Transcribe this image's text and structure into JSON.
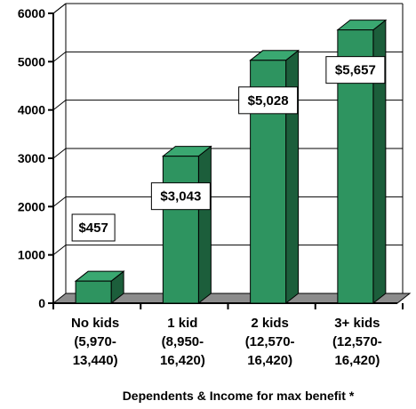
{
  "chart_data": {
    "type": "bar",
    "style": "3d",
    "categories": [
      [
        "No kids",
        "(5,970-",
        "13,440)"
      ],
      [
        "1 kid",
        "(8,950-",
        "16,420)"
      ],
      [
        "2 kids",
        "(12,570-",
        "16,420)"
      ],
      [
        "3+ kids",
        "(12,570-",
        "16,420)"
      ]
    ],
    "values": [
      457,
      3043,
      5028,
      5657
    ],
    "data_labels": [
      "$457",
      "$3,043",
      "$5,028",
      "$5,657"
    ],
    "y_ticks": [
      "0",
      "1000",
      "2000",
      "3000",
      "4000",
      "5000",
      "6000"
    ],
    "ylim": [
      0,
      6000
    ],
    "xlabel": "Dependents & Income for max benefit *",
    "ylabel": "",
    "grid": true,
    "legend": "none",
    "colors": {
      "bar_front": "#2e9460",
      "bar_side": "#1c5e3b",
      "bar_top": "#3aa871",
      "floor": "#8c8c8c",
      "outline": "#000000"
    }
  }
}
